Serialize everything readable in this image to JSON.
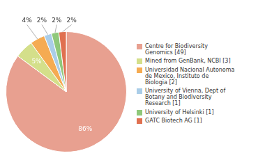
{
  "chart_data": {
    "type": "pie",
    "categories": [
      "Centre for Biodiversity\nGenomics [49]",
      "Mined from GenBank, NCBI [3]",
      "Universidad Nacional Autonoma\nde Mexico, Instituto de\nBiologia [2]",
      "University of Vienna, Dept of\nBotany and Biodiversity\nResearch [1]",
      "University of Helsinki [1]",
      "GATC Biotech AG [1]"
    ],
    "values": [
      86,
      5,
      4,
      2,
      2,
      2
    ],
    "value_labels": [
      "86%",
      "5%",
      "4%",
      "2%",
      "2%",
      "2%"
    ],
    "colors": [
      "#e8a090",
      "#d4df8a",
      "#f5ab52",
      "#aacde8",
      "#8fc87a",
      "#e07050"
    ],
    "legend": "right",
    "data_labels": true
  }
}
